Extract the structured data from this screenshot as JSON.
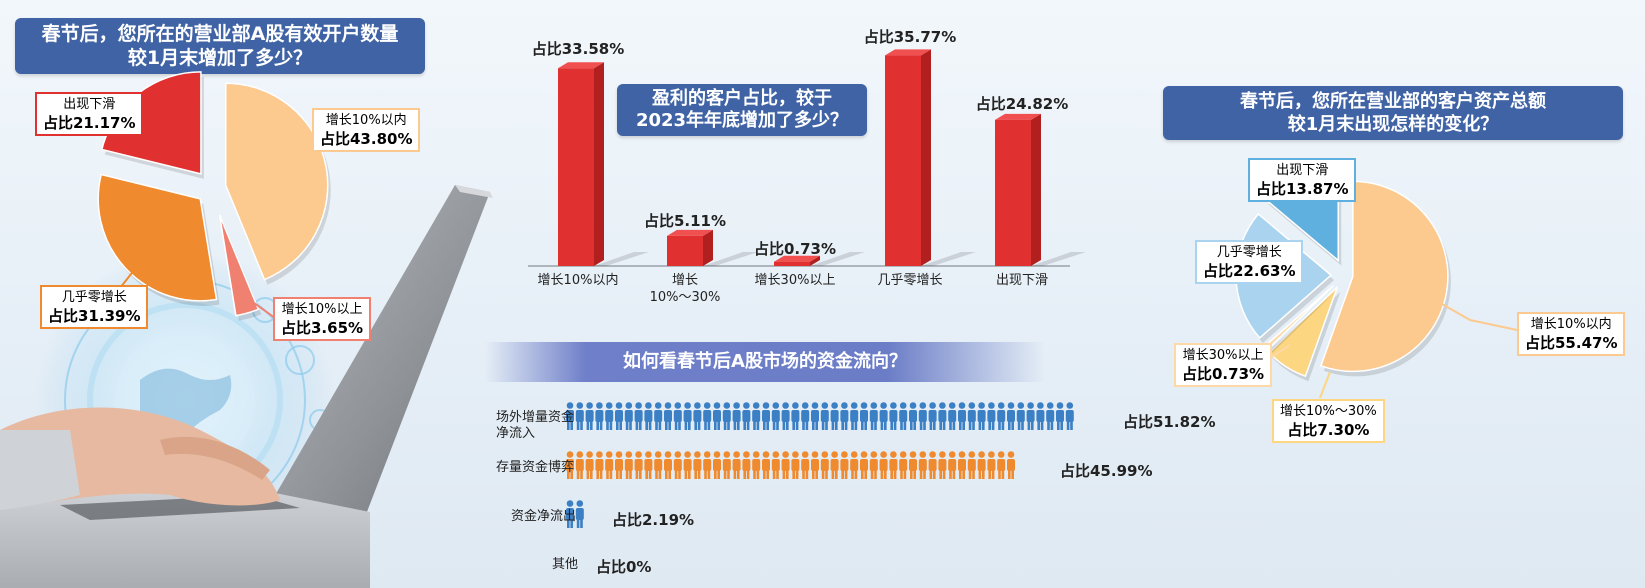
{
  "colors": {
    "title_bg": "#3f63a4",
    "red": "#e03030",
    "pale_orange": "#fcc98e",
    "orange": "#ef8a2f",
    "salmon": "#f08070",
    "blue_person": "#3b7fc4",
    "orange_person": "#ef8a2f",
    "light_blue": "#a9d3ee",
    "mid_blue": "#5fb0de",
    "pale_yellow": "#fcd681"
  },
  "chart_data": [
    {
      "type": "pie",
      "title": "春节后，您所在的营业部A股有效开户数量较1月末增加了多少？",
      "title_lines": [
        "春节后，您所在的营业部A股有效开户数量",
        "较1月末增加了多少？"
      ],
      "slices": [
        {
          "name": "增长10%以内",
          "value": 43.8,
          "label": "占比43.80%",
          "color": "#fcc98e"
        },
        {
          "name": "增长10%以上",
          "value": 3.65,
          "label": "占比3.65%",
          "color": "#f08070"
        },
        {
          "name": "几乎零增长",
          "value": 31.39,
          "label": "占比31.39%",
          "color": "#ef8a2f"
        },
        {
          "name": "出现下滑",
          "value": 21.17,
          "label": "占比21.17%",
          "color": "#e03030"
        }
      ]
    },
    {
      "type": "bar",
      "title": "盈利的客户占比，较于2023年年底增加了多少？",
      "title_lines": [
        "盈利的客户占比，较于",
        "2023年年底增加了多少？"
      ],
      "categories": [
        "增长10%以内",
        "增长10%～30%",
        "增长30%以上",
        "几乎零增长",
        "出现下滑"
      ],
      "category_lines": [
        [
          "增长10%以内"
        ],
        [
          "增长",
          "10%～30%"
        ],
        [
          "增长30%以上"
        ],
        [
          "几乎零增长"
        ],
        [
          "出现下滑"
        ]
      ],
      "values": [
        33.58,
        5.11,
        0.73,
        35.77,
        24.82
      ],
      "labels": [
        "占比33.58%",
        "占比5.11%",
        "占比0.73%",
        "占比35.77%",
        "占比24.82%"
      ],
      "ylim": [
        0,
        36
      ]
    },
    {
      "type": "bar",
      "subtype": "pictogram",
      "title": "如何看春节后A股市场的资金流向？",
      "categories": [
        "场外增量资金净流入",
        "存量资金博弈",
        "资金净流出",
        "其他"
      ],
      "category_lines": [
        [
          "场外增量资金",
          "净流入"
        ],
        [
          "存量资金博弈"
        ],
        [
          "资金净流出"
        ],
        [
          "其他"
        ]
      ],
      "values": [
        51.82,
        45.99,
        2.19,
        0
      ],
      "labels": [
        "占比51.82%",
        "占比45.99%",
        "占比2.19%",
        "占比0%"
      ],
      "person_colors": [
        "#3b7fc4",
        "#ef8a2f",
        "#3b7fc4",
        "#3b7fc4"
      ]
    },
    {
      "type": "pie",
      "title": "春节后，您所在营业部的客户资产总额较1月末出现怎样的变化？",
      "title_lines": [
        "春节后，您所在营业部的客户资产总额",
        "较1月末出现怎样的变化？"
      ],
      "slices": [
        {
          "name": "增长10%以内",
          "value": 55.47,
          "label": "占比55.47%",
          "color": "#fcc98e"
        },
        {
          "name": "增长10%～30%",
          "value": 7.3,
          "label": "占比7.30%",
          "color": "#fcd681"
        },
        {
          "name": "增长30%以上",
          "value": 0.73,
          "label": "占比0.73%",
          "color": "#fdd9a8"
        },
        {
          "name": "几乎零增长",
          "value": 22.63,
          "label": "占比22.63%",
          "color": "#a9d3ee"
        },
        {
          "name": "出现下滑",
          "value": 13.87,
          "label": "占比13.87%",
          "color": "#5fb0de"
        }
      ]
    }
  ]
}
